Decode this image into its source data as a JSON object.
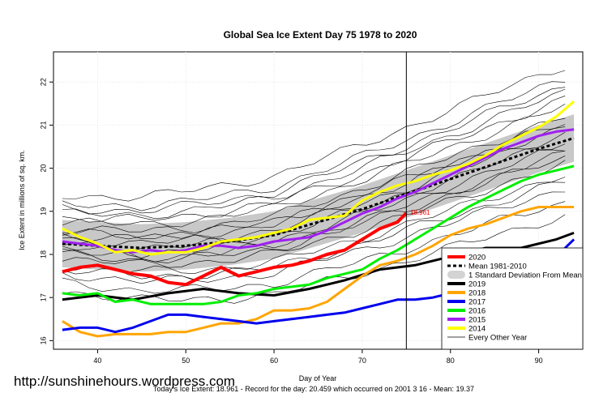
{
  "chart_data": {
    "type": "line",
    "title": "Global Sea Ice Extent Day 75 1978 to 2020",
    "xlabel": "Day of Year",
    "ylabel": "Ice Extent in millions of sq. km.",
    "xlim": [
      35,
      95
    ],
    "ylim": [
      15.8,
      22.7
    ],
    "xticks": [
      40,
      50,
      60,
      70,
      80,
      90
    ],
    "yticks": [
      16,
      17,
      18,
      19,
      20,
      21,
      22
    ],
    "current_day": 75,
    "today_label": "18.961",
    "url_text": "http://sunshinehours.wordpress.com",
    "footer": "Today's Ice Extent: 18.961  - Record for the day: 20.459 which occurred on 2001 3 16  - Mean: 19.37",
    "legend": [
      {
        "label": "2020",
        "color": "#ff0000",
        "style": "thick"
      },
      {
        "label": "Mean 1981-2010",
        "color": "#000000",
        "style": "dotted"
      },
      {
        "label": "1 Standard Deviation From Mean",
        "color": "#d3d3d3",
        "style": "band"
      },
      {
        "label": "2019",
        "color": "#000000",
        "style": "thick"
      },
      {
        "label": "2018",
        "color": "#ffa500",
        "style": "thick"
      },
      {
        "label": "2017",
        "color": "#0000ee",
        "style": "thick"
      },
      {
        "label": "2016",
        "color": "#00ee00",
        "style": "thick"
      },
      {
        "label": "2015",
        "color": "#a020f0",
        "style": "thick"
      },
      {
        "label": "2014",
        "color": "#ffff00",
        "style": "thick"
      },
      {
        "label": "Every Other Year",
        "color": "#000000",
        "style": "thin"
      }
    ],
    "mean": {
      "x": [
        36,
        40,
        45,
        50,
        55,
        60,
        65,
        70,
        75,
        80,
        85,
        90,
        94
      ],
      "y": [
        18.25,
        18.2,
        18.15,
        18.2,
        18.3,
        18.45,
        18.75,
        19.05,
        19.4,
        19.75,
        20.1,
        20.45,
        20.7
      ]
    },
    "sd_band": {
      "x": [
        36,
        40,
        45,
        50,
        55,
        60,
        65,
        70,
        75,
        80,
        85,
        90,
        94
      ],
      "upper": [
        18.8,
        18.75,
        18.7,
        18.75,
        18.85,
        19.0,
        19.3,
        19.6,
        19.95,
        20.3,
        20.65,
        21.0,
        21.25
      ],
      "lower": [
        17.7,
        17.65,
        17.6,
        17.65,
        17.75,
        17.9,
        18.2,
        18.5,
        18.85,
        19.2,
        19.55,
        19.9,
        20.15
      ]
    },
    "series": [
      {
        "name": "2020",
        "color": "#ff0000",
        "x": [
          36,
          38,
          40,
          42,
          44,
          46,
          48,
          50,
          52,
          54,
          56,
          58,
          60,
          62,
          64,
          66,
          68,
          70,
          72,
          74,
          75
        ],
        "y": [
          17.6,
          17.7,
          17.75,
          17.65,
          17.55,
          17.5,
          17.35,
          17.3,
          17.5,
          17.7,
          17.5,
          17.6,
          17.7,
          17.75,
          17.85,
          18.0,
          18.1,
          18.35,
          18.6,
          18.75,
          18.961
        ]
      },
      {
        "name": "2019",
        "color": "#000000",
        "x": [
          36,
          40,
          44,
          48,
          52,
          56,
          60,
          64,
          68,
          72,
          76,
          80,
          84,
          88,
          92,
          94
        ],
        "y": [
          16.95,
          17.05,
          16.95,
          17.1,
          17.2,
          17.1,
          17.05,
          17.2,
          17.4,
          17.65,
          17.75,
          17.95,
          18.15,
          18.15,
          18.35,
          18.5
        ]
      },
      {
        "name": "2018",
        "color": "#ffa500",
        "x": [
          36,
          38,
          40,
          42,
          44,
          46,
          48,
          50,
          52,
          54,
          56,
          58,
          60,
          62,
          64,
          66,
          68,
          70,
          72,
          74,
          76,
          78,
          80,
          82,
          84,
          86,
          88,
          90,
          92,
          94
        ],
        "y": [
          16.45,
          16.2,
          16.1,
          16.15,
          16.15,
          16.15,
          16.2,
          16.2,
          16.3,
          16.4,
          16.4,
          16.5,
          16.7,
          16.7,
          16.75,
          16.9,
          17.2,
          17.5,
          17.75,
          17.85,
          18.0,
          18.2,
          18.45,
          18.6,
          18.7,
          18.85,
          19.0,
          19.1,
          19.1,
          19.1
        ]
      },
      {
        "name": "2017",
        "color": "#0000ee",
        "x": [
          36,
          38,
          40,
          42,
          44,
          46,
          48,
          50,
          52,
          54,
          56,
          58,
          60,
          62,
          64,
          66,
          68,
          70,
          72,
          74,
          76,
          78,
          80,
          82,
          84,
          86,
          88,
          90,
          92,
          94
        ],
        "y": [
          16.25,
          16.3,
          16.3,
          16.2,
          16.3,
          16.45,
          16.6,
          16.6,
          16.55,
          16.5,
          16.45,
          16.4,
          16.45,
          16.5,
          16.55,
          16.6,
          16.65,
          16.75,
          16.85,
          16.95,
          16.95,
          17.0,
          17.1,
          17.15,
          17.35,
          17.5,
          17.6,
          17.75,
          17.95,
          18.35
        ]
      },
      {
        "name": "2016",
        "color": "#00ee00",
        "x": [
          36,
          38,
          40,
          42,
          44,
          46,
          48,
          50,
          52,
          54,
          56,
          58,
          60,
          62,
          64,
          66,
          68,
          70,
          72,
          74,
          76,
          78,
          80,
          82,
          84,
          86,
          88,
          90,
          92,
          94
        ],
        "y": [
          17.1,
          17.05,
          17.1,
          16.9,
          16.95,
          16.85,
          16.85,
          16.85,
          16.85,
          16.9,
          17.05,
          17.1,
          17.2,
          17.25,
          17.3,
          17.45,
          17.55,
          17.65,
          17.9,
          18.1,
          18.35,
          18.6,
          18.85,
          19.1,
          19.3,
          19.5,
          19.7,
          19.85,
          19.95,
          20.05
        ]
      },
      {
        "name": "2015",
        "color": "#a020f0",
        "x": [
          36,
          38,
          40,
          42,
          44,
          46,
          48,
          50,
          52,
          54,
          56,
          58,
          60,
          62,
          64,
          66,
          68,
          70,
          72,
          74,
          76,
          78,
          80,
          82,
          84,
          86,
          88,
          90,
          92,
          94
        ],
        "y": [
          18.3,
          18.25,
          18.2,
          18.1,
          18.05,
          18.1,
          18.05,
          18.1,
          18.2,
          18.2,
          18.15,
          18.2,
          18.3,
          18.35,
          18.4,
          18.55,
          18.75,
          18.95,
          19.1,
          19.3,
          19.45,
          19.65,
          19.85,
          20.05,
          20.25,
          20.45,
          20.6,
          20.75,
          20.85,
          20.9
        ]
      },
      {
        "name": "2014",
        "color": "#ffff00",
        "x": [
          36,
          38,
          40,
          42,
          44,
          46,
          48,
          50,
          52,
          54,
          56,
          58,
          60,
          62,
          64,
          66,
          68,
          70,
          72,
          74,
          76,
          78,
          80,
          82,
          84,
          86,
          88,
          90,
          92,
          94
        ],
        "y": [
          18.6,
          18.4,
          18.25,
          18.05,
          18.1,
          18.0,
          18.05,
          18.05,
          18.15,
          18.3,
          18.35,
          18.4,
          18.5,
          18.6,
          18.8,
          18.85,
          18.9,
          19.25,
          19.45,
          19.6,
          19.7,
          19.85,
          19.95,
          20.1,
          20.3,
          20.55,
          20.75,
          20.95,
          21.2,
          21.55
        ]
      }
    ]
  }
}
